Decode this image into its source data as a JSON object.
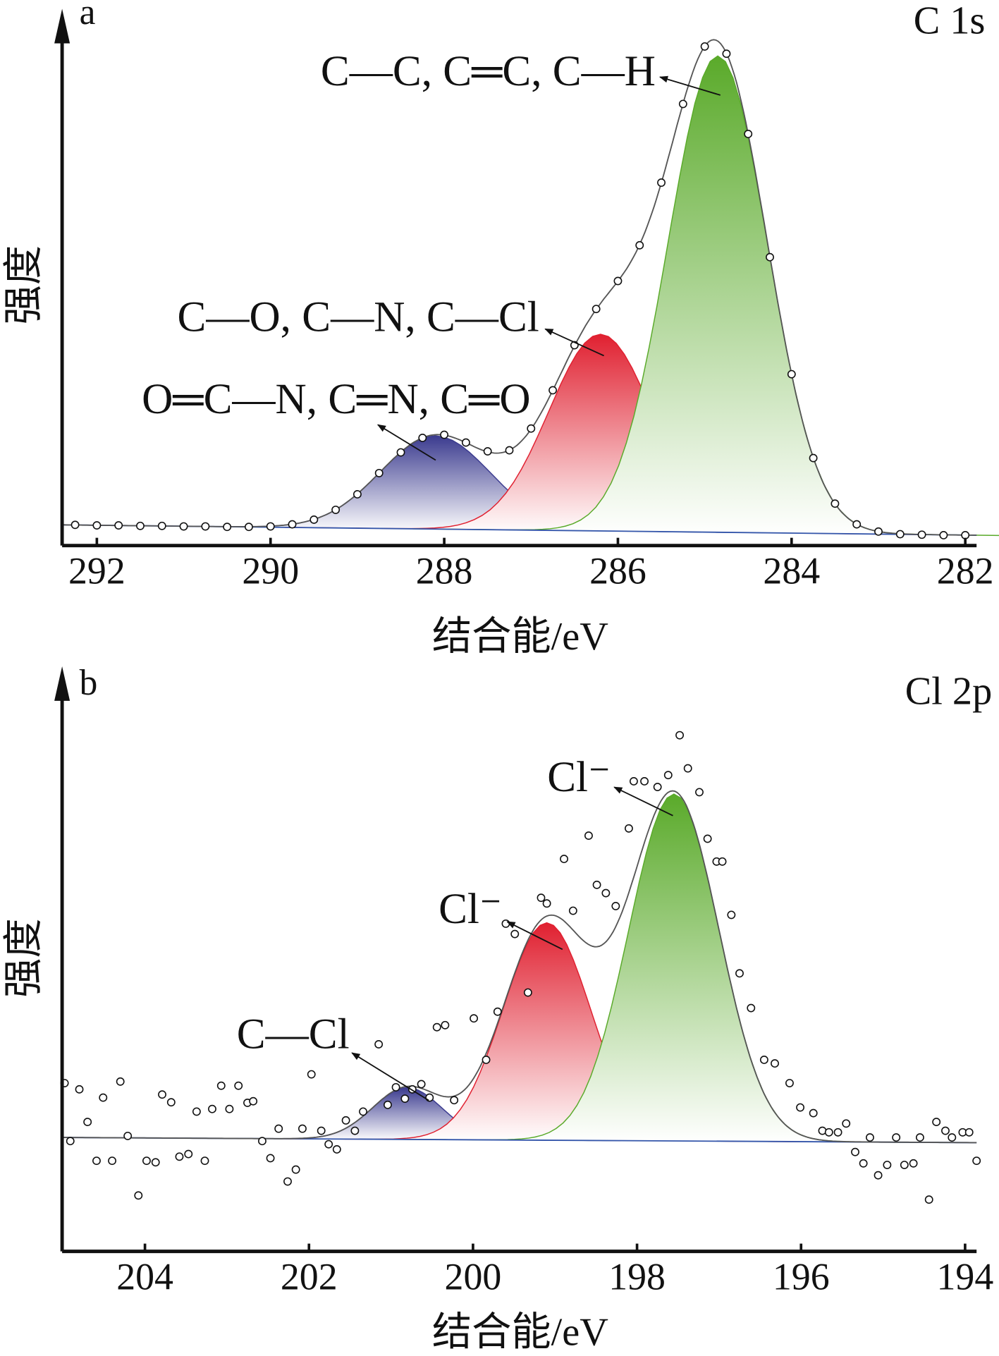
{
  "chart_data": [
    {
      "type": "spectrum",
      "panel_label": "a",
      "title": "C 1s",
      "x_label": "结合能/eV",
      "y_label": "强度",
      "xlim": [
        292.4,
        281.87
      ],
      "xticks": [
        292,
        290,
        288,
        286,
        284,
        282
      ],
      "ylim": [
        0,
        100
      ],
      "baseline": {
        "x": [
          292.4,
          281.87
        ],
        "values": [
          4.0,
          2.0
        ],
        "color": "#3355aa"
      },
      "envelope_color": "#555555",
      "x": [
        292.25,
        292.0,
        291.75,
        291.5,
        291.25,
        291.0,
        290.75,
        290.5,
        290.25,
        290.0,
        289.75,
        289.5,
        289.25,
        289.0,
        288.75,
        288.5,
        288.25,
        288.0,
        287.75,
        287.5,
        287.25,
        287.0,
        286.75,
        286.5,
        286.25,
        286.0,
        285.75,
        285.5,
        285.25,
        285.0,
        284.75,
        284.5,
        284.25,
        284.0,
        283.75,
        283.5,
        283.25,
        283.0,
        282.75,
        282.5,
        282.25,
        282.0
      ],
      "values": [
        4.0,
        3.9,
        3.9,
        3.8,
        3.8,
        3.7,
        3.7,
        3.6,
        3.6,
        3.7,
        4.1,
        5.0,
        6.9,
        9.9,
        14.0,
        18.0,
        20.8,
        21.4,
        19.9,
        18.2,
        18.4,
        22.6,
        30.0,
        38.7,
        45.7,
        51.1,
        58.0,
        70.1,
        85.3,
        96.4,
        95.0,
        79.5,
        55.7,
        33.1,
        16.9,
        8.1,
        4.1,
        2.7,
        2.2,
        2.1,
        2.0,
        2.0
      ],
      "peaks": [
        {
          "name": "O═C—N, C═N, C═O",
          "color": "#3b3b8f",
          "center": 288.1,
          "height": 18,
          "fwhm": 1.5
        },
        {
          "name": "C—O, C—N, C—Cl",
          "color": "#e02030",
          "center": 286.2,
          "height": 38,
          "fwhm": 1.4
        },
        {
          "name": "C—C, C═C, C—H",
          "color": "#5aaa2a",
          "center": 284.85,
          "height": 92,
          "fwhm": 1.35
        }
      ]
    },
    {
      "type": "spectrum",
      "panel_label": "b",
      "title": "Cl 2p",
      "x_label": "结合能/eV",
      "y_label": "强度",
      "xlim": [
        205.01,
        193.86
      ],
      "xticks": [
        204,
        202,
        200,
        198,
        196,
        194
      ],
      "ylim": [
        0,
        100
      ],
      "baseline": {
        "x": [
          205.01,
          193.86
        ],
        "values": [
          22,
          21
        ],
        "color": "#3355aa"
      },
      "envelope_color": "#555555",
      "x": [
        204.98,
        204.91,
        204.8,
        204.7,
        204.59,
        204.51,
        204.4,
        204.3,
        204.21,
        204.08,
        203.98,
        203.87,
        203.79,
        203.68,
        203.58,
        203.47,
        203.37,
        203.27,
        203.18,
        203.07,
        202.97,
        202.86,
        202.75,
        202.68,
        202.57,
        202.47,
        202.37,
        202.26,
        202.16,
        202.08,
        201.97,
        201.85,
        201.76,
        201.66,
        201.55,
        201.44,
        201.34,
        201.15,
        201.04,
        200.94,
        200.83,
        200.74,
        200.63,
        200.53,
        200.44,
        200.34,
        200.23,
        199.99,
        199.84,
        199.7,
        199.6,
        199.49,
        199.33,
        199.17,
        199.1,
        198.89,
        198.78,
        198.59,
        198.49,
        198.38,
        198.26,
        198.1,
        198.04,
        197.91,
        197.75,
        197.62,
        197.48,
        197.38,
        197.24,
        197.14,
        197.03,
        196.96,
        196.85,
        196.75,
        196.61,
        196.45,
        196.32,
        196.14,
        196.01,
        195.85,
        195.74,
        195.66,
        195.55,
        195.45,
        195.34,
        195.24,
        195.16,
        195.06,
        194.95,
        194.84,
        194.74,
        194.63,
        194.55,
        194.44,
        194.35,
        194.24,
        194.16,
        194.03,
        193.95,
        193.86
      ],
      "values": [
        32.5,
        21.3,
        31.3,
        25,
        17.5,
        29.7,
        17.5,
        32.8,
        22.3,
        10.8,
        17.5,
        17.2,
        30.3,
        28.8,
        18.3,
        18.8,
        27,
        17.5,
        27.5,
        32,
        27.5,
        32,
        28.7,
        29,
        21.3,
        18,
        23.7,
        13.5,
        15.8,
        23.7,
        34.2,
        23.3,
        20.7,
        19.7,
        25.3,
        23.3,
        27,
        40,
        28.3,
        31.7,
        29.5,
        31.3,
        32.3,
        29.7,
        43.3,
        43.7,
        29.2,
        45,
        37,
        46.3,
        63.3,
        61.3,
        50,
        68.3,
        67.2,
        75.8,
        65.8,
        80.3,
        70.8,
        69.2,
        66.7,
        81.7,
        90.8,
        90.8,
        89.7,
        92,
        99.7,
        93.3,
        88.7,
        79.7,
        75.3,
        75.3,
        65,
        53.7,
        47,
        37,
        36.3,
        32.5,
        27.8,
        26.7,
        23.3,
        23,
        23,
        24.7,
        19.2,
        17,
        22,
        14.7,
        16.7,
        22,
        16.7,
        17,
        22,
        10,
        25,
        23.3,
        22,
        23,
        23,
        17.5
      ],
      "peaks": [
        {
          "name": "C—Cl",
          "color": "#3b3b8f",
          "center": 200.8,
          "height": 10,
          "fwhm": 1.0
        },
        {
          "name": "Cl⁻",
          "color": "#e02030",
          "center": 199.1,
          "height": 42,
          "fwhm": 1.25
        },
        {
          "name": "Cl⁻",
          "color": "#5aaa2a",
          "center": 197.55,
          "height": 67,
          "fwhm": 1.3
        }
      ]
    }
  ]
}
